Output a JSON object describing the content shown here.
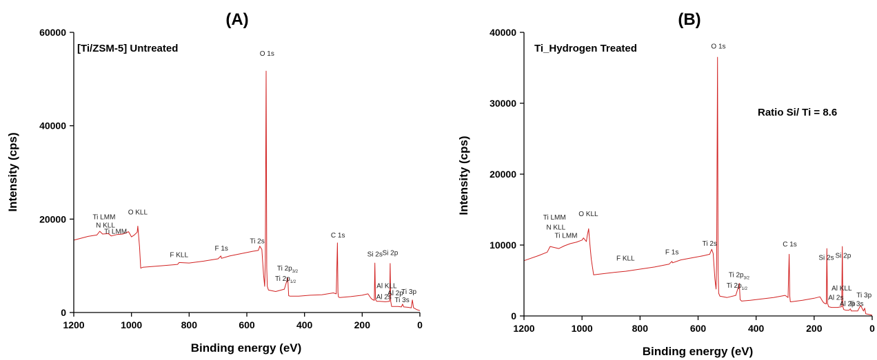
{
  "colors": {
    "line": "#d12020",
    "axis": "#000000"
  },
  "chart_data": [
    {
      "panel": "(A)",
      "type": "line",
      "title": "[Ti/ZSM-5] Untreated",
      "xlabel": "Binding energy (eV)",
      "ylabel": "Intensity (cps)",
      "xlim": [
        1200,
        0
      ],
      "ylim": [
        0,
        60000
      ],
      "x_reversed": true,
      "xticks": [
        1200,
        1000,
        800,
        600,
        400,
        200,
        0
      ],
      "yticks": [
        0,
        20000,
        40000,
        60000
      ],
      "grid": false,
      "legend": "none",
      "series": [
        {
          "x": [
            1200,
            1150,
            1120,
            1110,
            1100,
            1080,
            1070,
            1050,
            1030,
            1010,
            1000,
            990,
            980,
            978,
            972,
            968,
            960,
            900,
            840,
            835,
            800,
            750,
            700,
            690,
            688,
            660,
            620,
            580,
            560,
            555,
            548,
            542,
            538,
            536,
            533,
            531,
            529,
            525,
            500,
            470,
            462,
            458,
            455,
            450,
            420,
            380,
            340,
            300,
            290,
            286,
            284,
            282,
            278,
            240,
            200,
            180,
            170,
            165,
            158,
            156,
            154,
            150,
            140,
            120,
            105,
            103,
            101,
            98,
            90,
            75,
            64,
            60,
            56,
            40,
            30,
            26,
            22,
            10,
            0
          ],
          "y": [
            15500,
            16300,
            16600,
            17400,
            16800,
            16900,
            16400,
            16700,
            16800,
            17300,
            16200,
            16600,
            17200,
            18500,
            14000,
            9500,
            9700,
            10000,
            10300,
            10700,
            10600,
            11000,
            11500,
            12100,
            11600,
            12100,
            12600,
            13100,
            13300,
            14200,
            13500,
            8000,
            5600,
            11000,
            51700,
            9500,
            5600,
            4800,
            4500,
            5000,
            6600,
            7400,
            3600,
            3500,
            3500,
            3700,
            3800,
            4200,
            4000,
            14900,
            4200,
            3300,
            3200,
            3400,
            3700,
            4000,
            3100,
            2800,
            2600,
            10600,
            2800,
            2400,
            2400,
            2300,
            2400,
            10500,
            2400,
            1300,
            1300,
            1300,
            1200,
            1800,
            1200,
            1100,
            1000,
            2700,
            1000,
            600,
            400
          ]
        }
      ],
      "annotations": [
        {
          "text": "O 1s",
          "x": 530,
          "y": 55000
        },
        {
          "text": "O KLL",
          "x": 978,
          "y": 21000
        },
        {
          "text": "Ti LMM",
          "x": 1095,
          "y": 20000
        },
        {
          "text": "N KLL",
          "x": 1090,
          "y": 18200
        },
        {
          "text": "Ti LMM",
          "x": 1055,
          "y": 16900
        },
        {
          "text": "F KLL",
          "x": 835,
          "y": 11900
        },
        {
          "text": "F 1s",
          "x": 688,
          "y": 13300
        },
        {
          "text": "Ti 2s",
          "x": 564,
          "y": 14800
        },
        {
          "text": "C 1s",
          "x": 284,
          "y": 16100
        },
        {
          "text": "Si 2s",
          "x": 156,
          "y": 12000
        },
        {
          "text": "Si 2p",
          "x": 103,
          "y": 12300
        },
        {
          "text": "Ti 2p",
          "x": 459,
          "y": 9000,
          "sub": "3/2"
        },
        {
          "text": "Ti 2p",
          "x": 466,
          "y": 6800,
          "sub": "1/2"
        },
        {
          "text": "Al KLL",
          "x": 115,
          "y": 5200
        },
        {
          "text": "Al 2s",
          "x": 125,
          "y": 2900
        },
        {
          "text": "Al 2p",
          "x": 85,
          "y": 3700
        },
        {
          "text": "Ti 3p",
          "x": 38,
          "y": 4000
        },
        {
          "text": "Ti 3s",
          "x": 62,
          "y": 2200
        }
      ]
    },
    {
      "panel": "(B)",
      "type": "line",
      "title": "Ti_Hydrogen Treated",
      "note": "Ratio Si/ Ti = 8.6",
      "xlabel": "Binding energy (eV)",
      "ylabel": "Intensity (cps)",
      "xlim": [
        1200,
        0
      ],
      "ylim": [
        0,
        40000
      ],
      "x_reversed": true,
      "xticks": [
        1200,
        1000,
        800,
        600,
        400,
        200,
        0
      ],
      "yticks": [
        0,
        10000,
        20000,
        30000,
        40000
      ],
      "grid": false,
      "legend": "none",
      "series": [
        {
          "x": [
            1200,
            1150,
            1120,
            1110,
            1100,
            1080,
            1060,
            1040,
            1020,
            1000,
            995,
            985,
            982,
            977,
            973,
            968,
            960,
            900,
            850,
            800,
            750,
            700,
            690,
            688,
            660,
            620,
            580,
            560,
            553,
            548,
            542,
            538,
            536,
            533,
            531,
            529,
            525,
            500,
            470,
            462,
            458,
            455,
            450,
            420,
            380,
            340,
            300,
            290,
            286,
            284,
            282,
            278,
            240,
            200,
            180,
            170,
            165,
            158,
            156,
            154,
            150,
            140,
            120,
            105,
            103,
            101,
            98,
            90,
            80,
            75,
            72,
            70,
            60,
            50,
            40,
            30,
            26,
            22,
            10,
            0
          ],
          "y": [
            7800,
            8500,
            9000,
            9800,
            9700,
            9500,
            9900,
            10200,
            10400,
            10700,
            11000,
            10500,
            11300,
            12300,
            10200,
            8000,
            5800,
            6100,
            6300,
            6600,
            6900,
            7300,
            7700,
            7500,
            7900,
            8200,
            8500,
            8700,
            9400,
            8800,
            5200,
            3800,
            7500,
            36500,
            6500,
            3200,
            2800,
            2600,
            2900,
            4000,
            4600,
            2300,
            2100,
            2200,
            2400,
            2600,
            2900,
            2600,
            8700,
            2800,
            2000,
            2000,
            2200,
            2500,
            2700,
            2000,
            1800,
            1700,
            9500,
            1800,
            1300,
            1200,
            1200,
            1300,
            9800,
            1300,
            900,
            800,
            800,
            1000,
            700,
            700,
            700,
            700,
            1500,
            700,
            1100,
            300,
            200,
            100
          ]
        }
      ],
      "annotations": [
        {
          "text": "O 1s",
          "x": 530,
          "y": 37700
        },
        {
          "text": "O KLL",
          "x": 978,
          "y": 14100
        },
        {
          "text": "Ti LMM",
          "x": 1095,
          "y": 13600
        },
        {
          "text": "N KLL",
          "x": 1090,
          "y": 12200
        },
        {
          "text": "Ti LMM",
          "x": 1055,
          "y": 11000
        },
        {
          "text": "F KLL",
          "x": 850,
          "y": 7800
        },
        {
          "text": "F 1s",
          "x": 690,
          "y": 8700
        },
        {
          "text": "Ti 2s",
          "x": 560,
          "y": 9900
        },
        {
          "text": "C 1s",
          "x": 284,
          "y": 9800
        },
        {
          "text": "Si 2s",
          "x": 158,
          "y": 7900
        },
        {
          "text": "Si 2p",
          "x": 100,
          "y": 8200
        },
        {
          "text": "Ti 2p",
          "x": 459,
          "y": 5500,
          "sub": "3/2"
        },
        {
          "text": "Ti 2p",
          "x": 466,
          "y": 4000,
          "sub": "1/2"
        },
        {
          "text": "Al KLL",
          "x": 105,
          "y": 3600
        },
        {
          "text": "Al 2s",
          "x": 125,
          "y": 2300
        },
        {
          "text": "Al 2p",
          "x": 85,
          "y": 1400
        },
        {
          "text": "Ti 3p",
          "x": 28,
          "y": 2600
        },
        {
          "text": "Ti 3s",
          "x": 55,
          "y": 1400
        }
      ]
    }
  ]
}
